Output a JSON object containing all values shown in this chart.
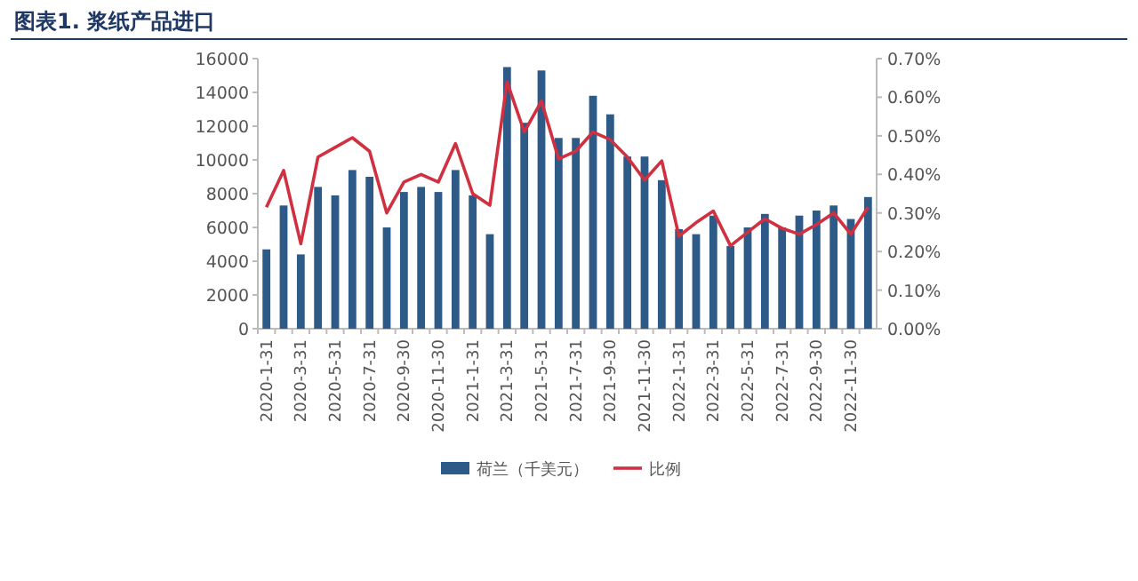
{
  "chart_data": {
    "type": "bar",
    "title": "图表1.   浆纸产品进口",
    "categories": [
      "2020-1-31",
      null,
      "2020-3-31",
      null,
      "2020-5-31",
      null,
      "2020-7-31",
      null,
      "2020-9-30",
      null,
      "2020-11-30",
      null,
      "2021-1-31",
      null,
      "2021-3-31",
      null,
      "2021-5-31",
      null,
      "2021-7-31",
      null,
      "2021-9-30",
      null,
      "2021-11-30",
      null,
      "2022-1-31",
      null,
      "2022-3-31",
      null,
      "2022-5-31",
      null,
      "2022-7-31",
      null,
      "2022-9-30",
      null,
      "2022-11-30",
      null
    ],
    "series": [
      {
        "name": "荷兰（千美元）",
        "color": "#2e5a88",
        "values": [
          4700,
          7300,
          4400,
          8400,
          7900,
          9400,
          9000,
          6000,
          8100,
          8400,
          8100,
          9400,
          7900,
          5600,
          15500,
          12200,
          15300,
          11300,
          11300,
          13800,
          12700,
          10200,
          10200,
          8800,
          5900,
          5600,
          6700,
          4900,
          6000,
          6800,
          6000,
          6700,
          7000,
          7300,
          6500,
          7800
        ]
      },
      {
        "name": "比例",
        "type": "line",
        "axis": "y2",
        "color": "#d03040",
        "values": [
          0.315,
          0.41,
          0.22,
          0.445,
          0.47,
          0.495,
          0.46,
          0.3,
          0.38,
          0.4,
          0.38,
          0.48,
          0.35,
          0.32,
          0.64,
          0.51,
          0.59,
          0.44,
          0.46,
          0.51,
          0.49,
          0.445,
          0.385,
          0.435,
          0.24,
          0.275,
          0.305,
          0.215,
          0.25,
          0.285,
          0.26,
          0.245,
          0.27,
          0.3,
          0.245,
          0.315
        ]
      }
    ],
    "ylim": [
      0,
      16000
    ],
    "yticks": [
      0,
      2000,
      4000,
      6000,
      8000,
      10000,
      12000,
      14000,
      16000
    ],
    "y2lim": [
      0,
      0.7
    ],
    "y2ticks": [
      {
        "value": 0,
        "label": "0.00%"
      },
      {
        "value": 0.1,
        "label": "0.10%"
      },
      {
        "value": 0.2,
        "label": "0.20%"
      },
      {
        "value": 0.3,
        "label": "0.30%"
      },
      {
        "value": 0.4,
        "label": "0.40%"
      },
      {
        "value": 0.5,
        "label": "0.50%"
      },
      {
        "value": 0.6,
        "label": "0.60%"
      },
      {
        "value": 0.7,
        "label": "0.70%"
      }
    ],
    "legend": "bottom"
  }
}
